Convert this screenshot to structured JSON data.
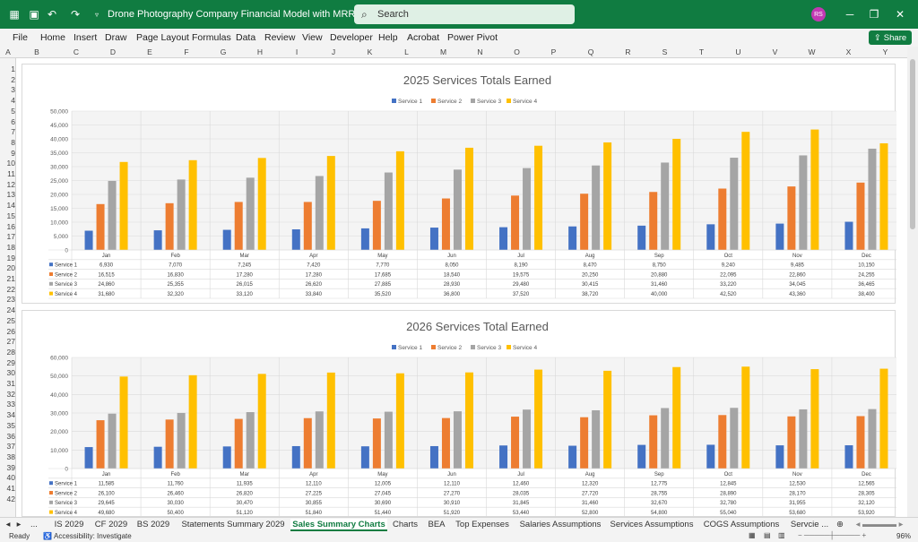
{
  "window": {
    "title": "Drone Photography Company Financial Model with MRR.xlsx  -  Excel",
    "search_placeholder": "Search",
    "user_initials": "RS"
  },
  "menu": [
    "File",
    "Home",
    "Insert",
    "Draw",
    "Page Layout",
    "Formulas",
    "Data",
    "Review",
    "View",
    "Developer",
    "Help",
    "Acrobat",
    "Power Pivot"
  ],
  "share_label": "Share",
  "columns": [
    "A",
    "B",
    "C",
    "D",
    "E",
    "F",
    "G",
    "H",
    "I",
    "J",
    "K",
    "L",
    "M",
    "N",
    "O",
    "P",
    "Q",
    "R",
    "S",
    "T",
    "U",
    "V",
    "W",
    "X",
    "Y"
  ],
  "rows": [
    "1",
    "2",
    "3",
    "4",
    "5",
    "6",
    "7",
    "8",
    "9",
    "10",
    "11",
    "12",
    "13",
    "14",
    "15",
    "16",
    "17",
    "18",
    "19",
    "20",
    "21",
    "22",
    "23",
    "24",
    "25",
    "26",
    "27",
    "28",
    "29",
    "30",
    "31",
    "32",
    "33",
    "34",
    "35",
    "36",
    "37",
    "38",
    "39",
    "40",
    "41",
    "42"
  ],
  "chart_data": [
    {
      "type": "bar",
      "title": "2025 Services Totals Earned",
      "categories": [
        "Jan",
        "Feb",
        "Mar",
        "Apr",
        "May",
        "Jun",
        "Jul",
        "Aug",
        "Sep",
        "Oct",
        "Nov",
        "Dec"
      ],
      "ylim": [
        0,
        50000
      ],
      "yticks": [
        "0",
        "5,000",
        "10,000",
        "15,000",
        "20,000",
        "25,000",
        "30,000",
        "35,000",
        "40,000",
        "45,000",
        "50,000"
      ],
      "legend": "top",
      "series": [
        {
          "name": "Service 1",
          "color": "#4472c4",
          "values": [
            6930,
            7070,
            7245,
            7420,
            7770,
            8050,
            8190,
            8470,
            8750,
            9240,
            9485,
            10150
          ],
          "labels": [
            "6,930",
            "7,070",
            "7,245",
            "7,420",
            "7,770",
            "8,050",
            "8,190",
            "8,470",
            "8,750",
            "9,240",
            "9,485",
            "10,150"
          ]
        },
        {
          "name": "Service 2",
          "color": "#ed7d31",
          "values": [
            16515,
            16830,
            17280,
            17280,
            17685,
            18540,
            19575,
            20250,
            20880,
            22095,
            22860,
            24255
          ],
          "labels": [
            "16,515",
            "16,830",
            "17,280",
            "17,280",
            "17,685",
            "18,540",
            "19,575",
            "20,250",
            "20,880",
            "22,095",
            "22,860",
            "24,255"
          ]
        },
        {
          "name": "Service 3",
          "color": "#a5a5a5",
          "values": [
            24860,
            25355,
            26015,
            26620,
            27885,
            28930,
            29480,
            30415,
            31460,
            33220,
            34045,
            36465
          ],
          "labels": [
            "24,860",
            "25,355",
            "26,015",
            "26,620",
            "27,885",
            "28,930",
            "29,480",
            "30,415",
            "31,460",
            "33,220",
            "34,045",
            "36,465"
          ]
        },
        {
          "name": "Service 4",
          "color": "#ffc000",
          "values": [
            31680,
            32320,
            33120,
            33840,
            35520,
            36800,
            37520,
            38720,
            40000,
            42520,
            43360,
            38400
          ],
          "labels": [
            "31,680",
            "32,320",
            "33,120",
            "33,840",
            "35,520",
            "36,800",
            "37,520",
            "38,720",
            "40,000",
            "42,520",
            "43,360",
            "38,400"
          ]
        }
      ]
    },
    {
      "type": "bar",
      "title": "2026 Services Total Earned",
      "categories": [
        "Jan",
        "Feb",
        "Mar",
        "Apr",
        "May",
        "Jun",
        "Jul",
        "Aug",
        "Sep",
        "Oct",
        "Nov",
        "Dec"
      ],
      "ylim": [
        0,
        60000
      ],
      "yticks": [
        "0",
        "10,000",
        "20,000",
        "30,000",
        "40,000",
        "50,000",
        "60,000"
      ],
      "legend": "top",
      "series": [
        {
          "name": "Service 1",
          "color": "#4472c4",
          "values": [
            11585,
            11760,
            11935,
            12110,
            12005,
            12110,
            12460,
            12320,
            12775,
            12845,
            12530,
            12565
          ],
          "labels": [
            "11,585",
            "11,760",
            "11,935",
            "12,110",
            "12,005",
            "12,110",
            "12,460",
            "12,320",
            "12,775",
            "12,845",
            "12,530",
            "12,565"
          ]
        },
        {
          "name": "Service 2",
          "color": "#ed7d31",
          "values": [
            26100,
            26460,
            26820,
            27225,
            27045,
            27270,
            28035,
            27720,
            28755,
            28890,
            28170,
            28305
          ],
          "labels": [
            "26,100",
            "26,460",
            "26,820",
            "27,225",
            "27,045",
            "27,270",
            "28,035",
            "27,720",
            "28,755",
            "28,890",
            "28,170",
            "28,305"
          ]
        },
        {
          "name": "Service 3",
          "color": "#a5a5a5",
          "values": [
            29645,
            30030,
            30470,
            30855,
            30690,
            30910,
            31845,
            31460,
            32670,
            32780,
            31955,
            32120
          ],
          "labels": [
            "29,645",
            "30,030",
            "30,470",
            "30,855",
            "30,690",
            "30,910",
            "31,845",
            "31,460",
            "32,670",
            "32,780",
            "31,955",
            "32,120"
          ]
        },
        {
          "name": "Service 4",
          "color": "#ffc000",
          "values": [
            49680,
            50400,
            51120,
            51840,
            51440,
            51920,
            53440,
            52800,
            54800,
            55040,
            53680,
            53920
          ],
          "labels": [
            "49,680",
            "50,400",
            "51,120",
            "51,840",
            "51,440",
            "51,920",
            "53,440",
            "52,800",
            "54,800",
            "55,040",
            "53,680",
            "53,920"
          ]
        }
      ]
    }
  ],
  "sheet_tabs": [
    "IS 2029",
    "CF 2029",
    "BS 2029",
    "Statements Summary 2029",
    "Sales Summary Charts",
    "Charts",
    "BEA",
    "Top Expenses",
    "Salaries Assumptions",
    "Services Assumptions",
    "COGS Assumptions",
    "Servcie ..."
  ],
  "active_tab": "Sales Summary Charts",
  "status": {
    "ready": "Ready",
    "accessibility": "Accessibility: Investigate",
    "zoom": "96%"
  }
}
